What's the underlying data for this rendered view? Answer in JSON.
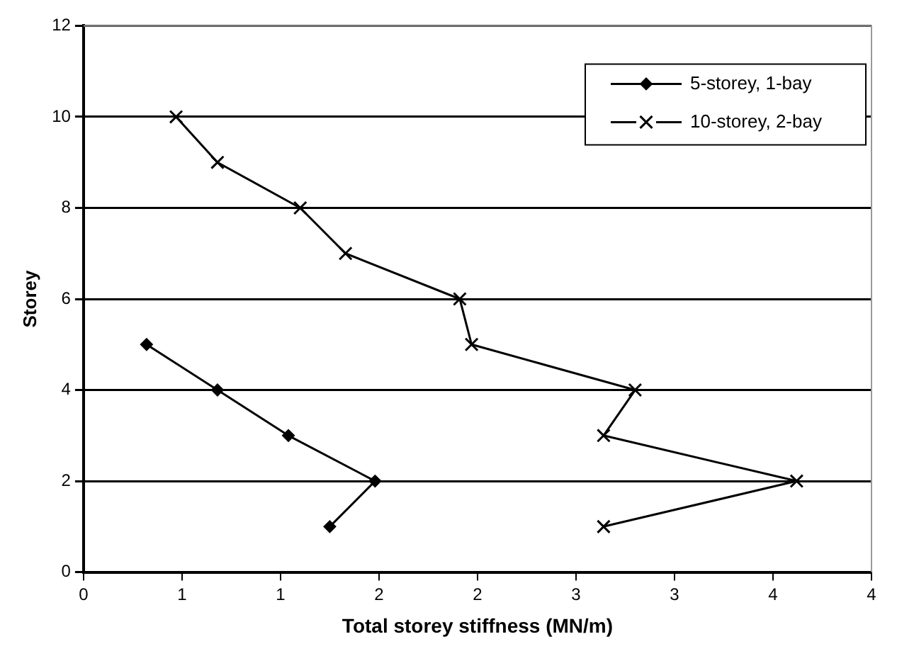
{
  "chart_data": {
    "type": "line",
    "xlabel": "Total storey stiffness (MN/m)",
    "ylabel": "Storey",
    "xlim": [
      0,
      4
    ],
    "xticks": [
      0,
      {
        "value": 0.5,
        "label": "1"
      },
      1,
      {
        "value": 1.5,
        "label": "2"
      },
      2,
      {
        "value": 2.5,
        "label": "3"
      },
      3,
      {
        "value": 3.5,
        "label": "4"
      },
      4
    ],
    "ylim": [
      0,
      12
    ],
    "yticks": [
      0,
      2,
      4,
      6,
      8,
      10,
      12
    ],
    "grid": "y",
    "legend": "top right",
    "series": [
      {
        "name": "5-storey, 1-bay",
        "color": "#000000",
        "marker": "diamond",
        "x": [
          0.32,
          0.68,
          1.04,
          1.48,
          1.25
        ],
        "values": [
          5,
          4,
          3,
          2,
          1
        ]
      },
      {
        "name": "10-storey, 2-bay",
        "color": "#000000",
        "marker": "cross",
        "x": [
          0.47,
          0.68,
          1.1,
          1.33,
          1.91,
          1.97,
          2.8,
          2.64,
          3.62,
          2.64
        ],
        "values": [
          10,
          9,
          8,
          7,
          6,
          5,
          4,
          3,
          2,
          1
        ]
      }
    ]
  }
}
